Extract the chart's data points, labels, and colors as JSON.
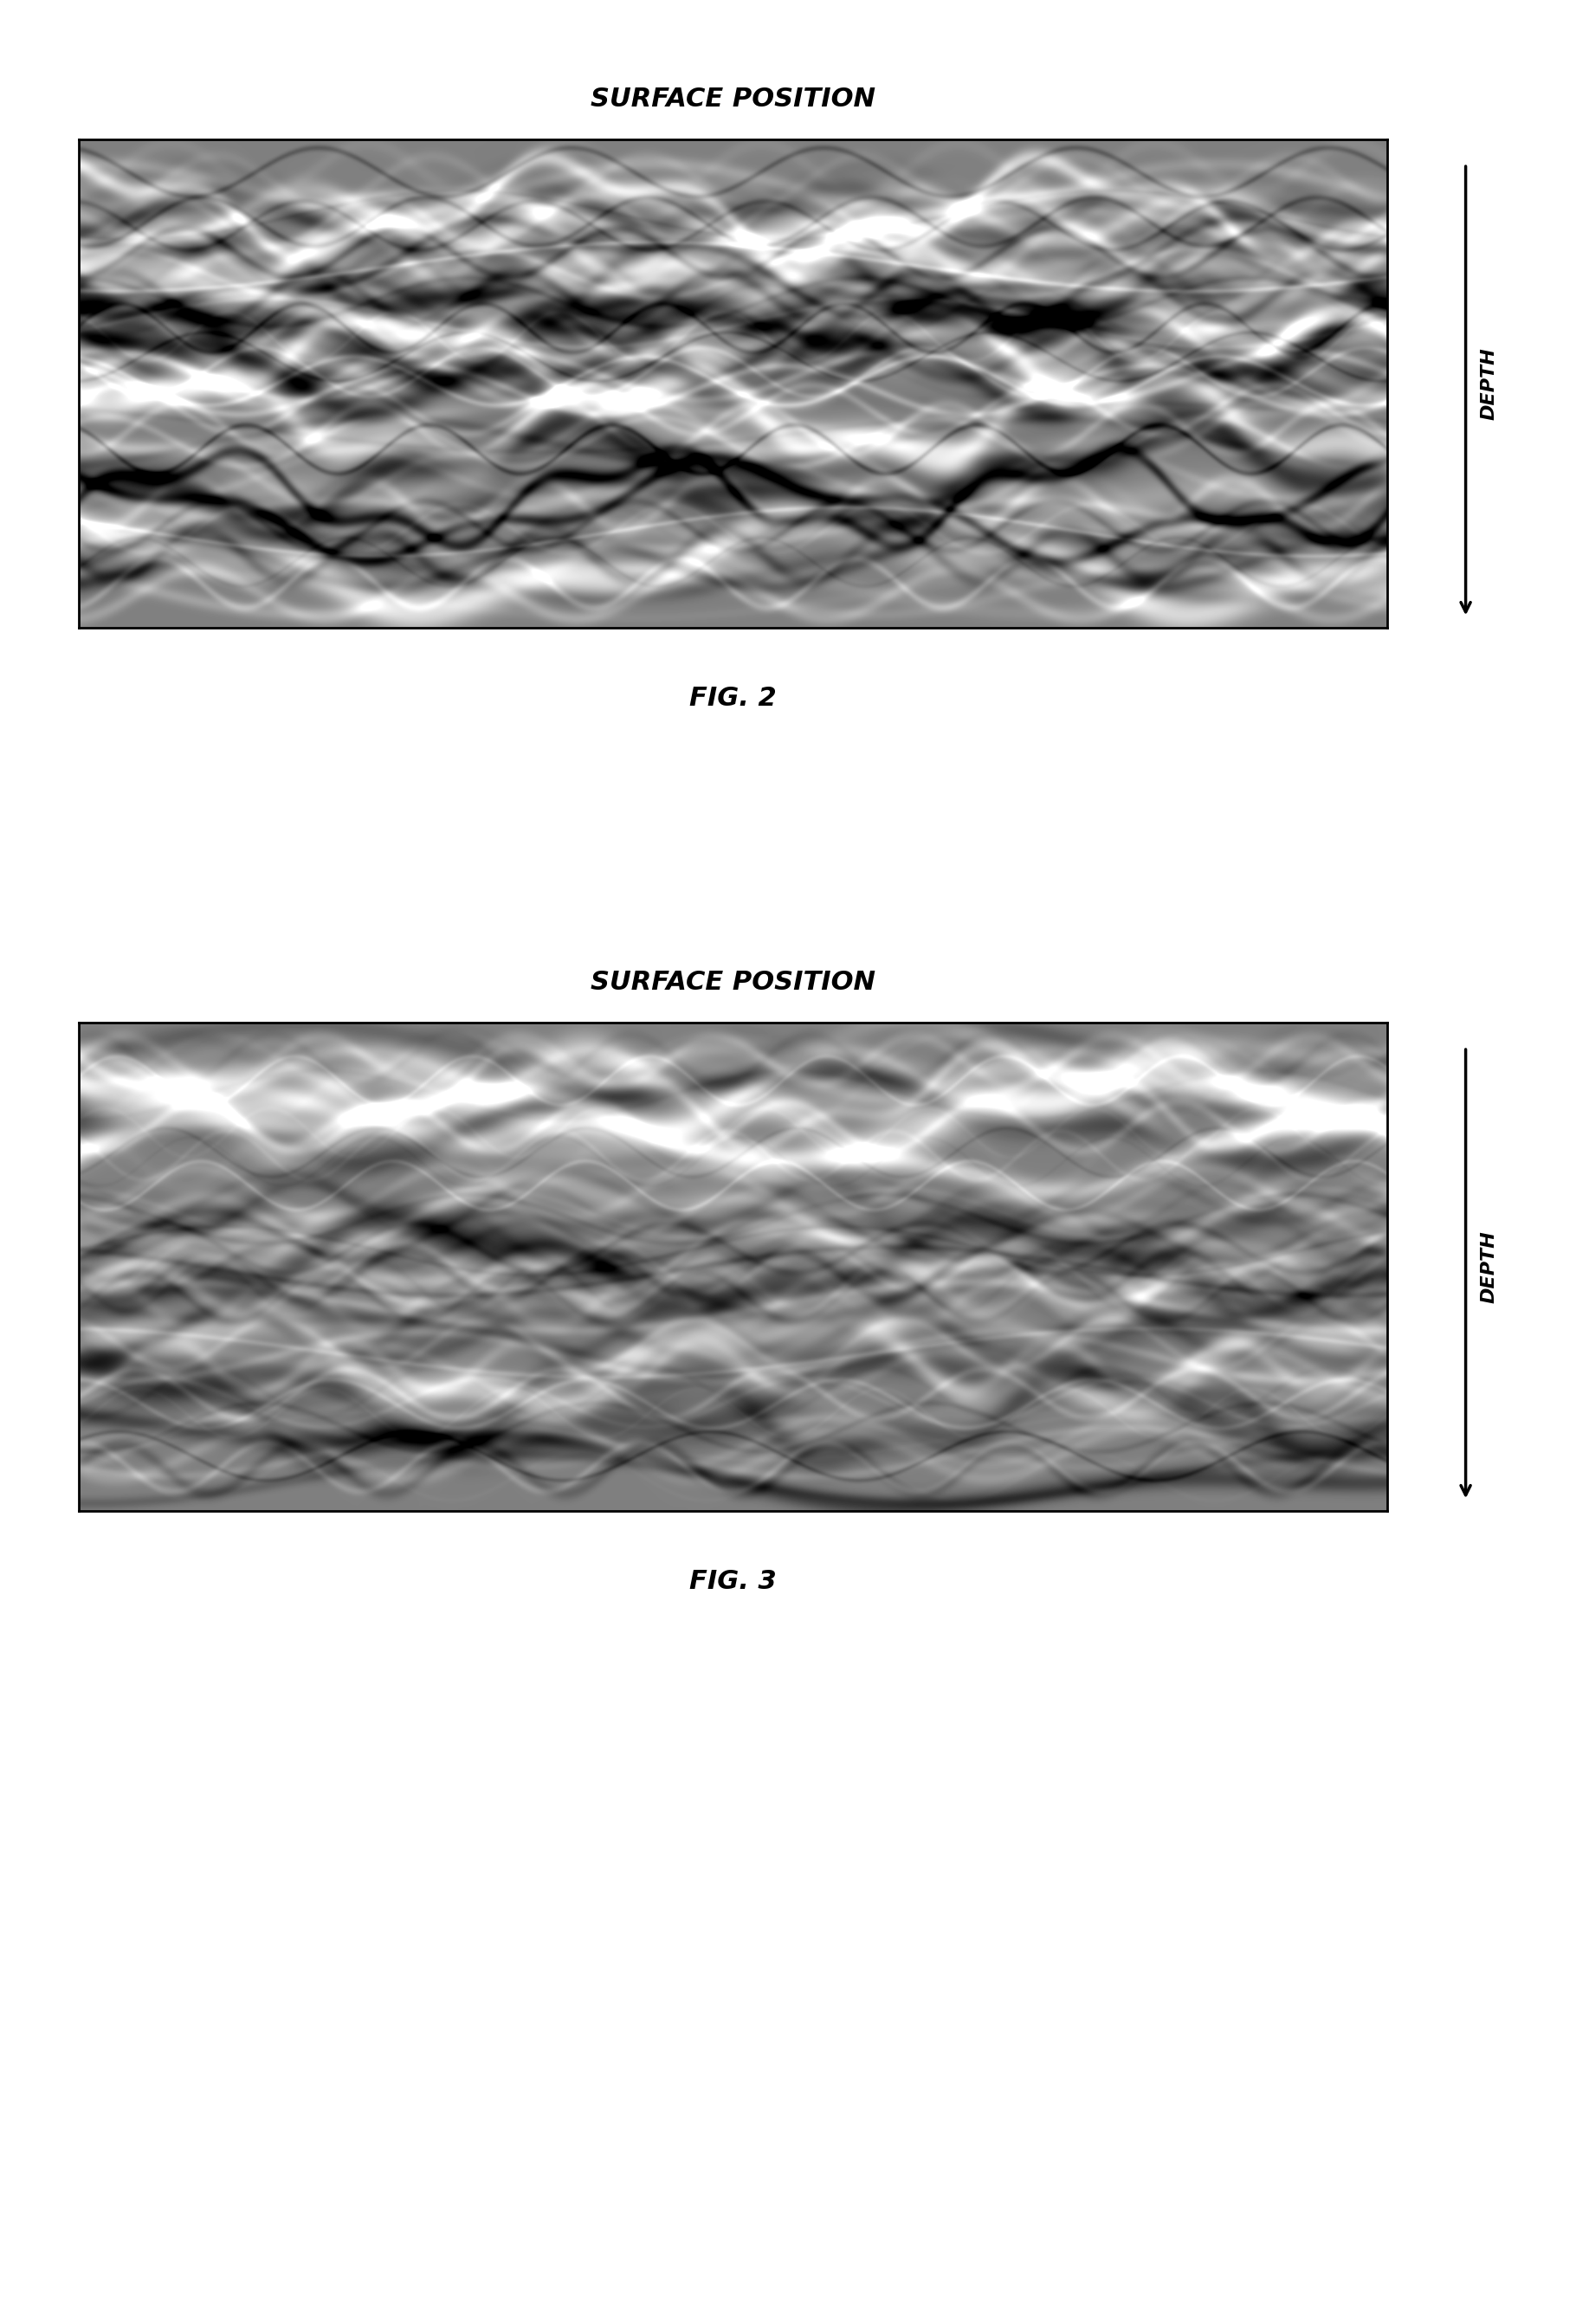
{
  "title1": "SURFACE POSITION",
  "title2": "SURFACE POSITION",
  "fig_label1": "FIG. 2",
  "fig_label2": "FIG. 3",
  "depth_label": "DEPTH",
  "bg_color": "#ffffff",
  "panel_border_color": "#000000",
  "title_fontsize": 22,
  "fig_label_fontsize": 22,
  "depth_fontsize": 16,
  "seed1": 42,
  "seed2": 137
}
